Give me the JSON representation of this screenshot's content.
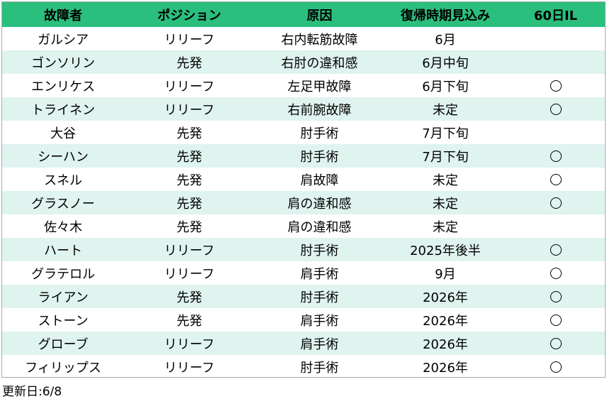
{
  "headers": [
    "故障者",
    "ポジション",
    "原因",
    "復帰時期見込み",
    "60日IL"
  ],
  "rows": [
    {
      "name": "ガルシア",
      "position": "リリーフ",
      "cause": "右内転筋故障",
      "return": "6月",
      "il60": false
    },
    {
      "name": "ゴンソリン",
      "position": "先発",
      "cause": "右肘の違和感",
      "return": "6月中旬",
      "il60": false
    },
    {
      "name": "エンリケス",
      "position": "リリーフ",
      "cause": "左足甲故障",
      "return": "6月下旬",
      "il60": true
    },
    {
      "name": "トライネン",
      "position": "リリーフ",
      "cause": "右前腕故障",
      "return": "未定",
      "il60": true
    },
    {
      "name": "大谷",
      "position": "先発",
      "cause": "肘手術",
      "return": "7月下旬",
      "il60": false
    },
    {
      "name": "シーハン",
      "position": "先発",
      "cause": "肘手術",
      "return": "7月下旬",
      "il60": true
    },
    {
      "name": "スネル",
      "position": "先発",
      "cause": "肩故障",
      "return": "未定",
      "il60": true
    },
    {
      "name": "グラスノー",
      "position": "先発",
      "cause": "肩の違和感",
      "return": "未定",
      "il60": true
    },
    {
      "name": "佐々木",
      "position": "先発",
      "cause": "肩の違和感",
      "return": "未定",
      "il60": false
    },
    {
      "name": "ハート",
      "position": "リリーフ",
      "cause": "肘手術",
      "return": "2025年後半",
      "il60": true
    },
    {
      "name": "グラテロル",
      "position": "リリーフ",
      "cause": "肩手術",
      "return": "9月",
      "il60": true
    },
    {
      "name": "ライアン",
      "position": "先発",
      "cause": "肘手術",
      "return": "2026年",
      "il60": true
    },
    {
      "name": "ストーン",
      "position": "先発",
      "cause": "肩手術",
      "return": "2026年",
      "il60": true
    },
    {
      "name": "グローブ",
      "position": "リリーフ",
      "cause": "肩手術",
      "return": "2026年",
      "il60": true
    },
    {
      "name": "フィリップス",
      "position": "リリーフ",
      "cause": "肘手術",
      "return": "2026年",
      "il60": true
    }
  ],
  "il_mark": "〇",
  "footer": {
    "updated": "更新日:6/8"
  },
  "colors": {
    "header_bg": "#2bbf7e",
    "stripe_bg": "#dff3ef",
    "border": "#a9a9a9"
  }
}
